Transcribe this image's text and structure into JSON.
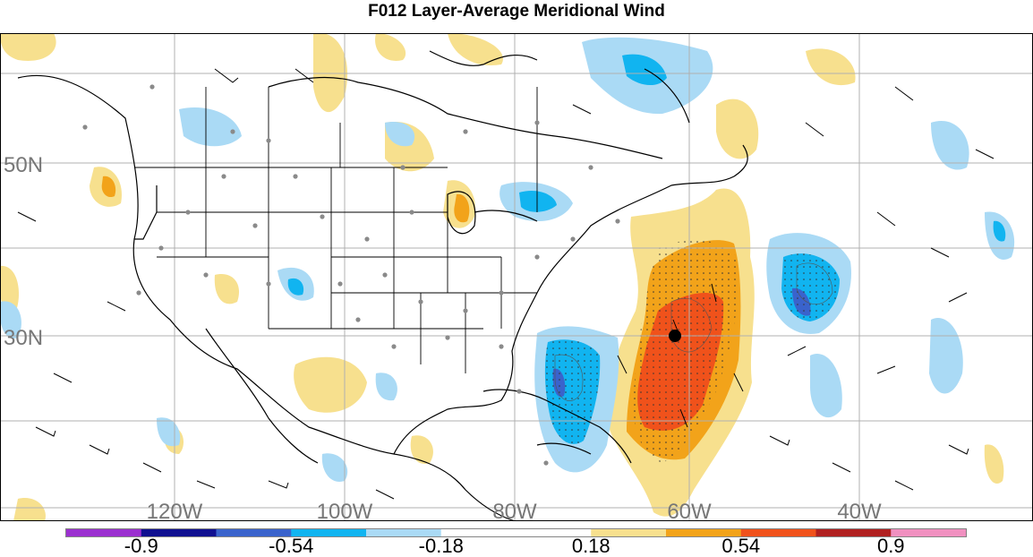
{
  "title": "F012 Layer-Average Meridional Wind",
  "lat_labels": [
    "50N",
    "30N"
  ],
  "lon_labels": [
    "120W",
    "100W",
    "80W",
    "60W",
    "40W"
  ],
  "colorbar": {
    "colors": [
      "#9b30d0",
      "#101090",
      "#3a63cc",
      "#11b4f0",
      "#aadaf5",
      "#ffffff",
      "#ffffff",
      "#f7e08e",
      "#f2a31a",
      "#f0521b",
      "#b02020",
      "#f090c0"
    ],
    "tick_labels": [
      "-0.9",
      "-0.54",
      "-0.18",
      "0.18",
      "0.54",
      "0.9"
    ]
  },
  "colors": {
    "positive_light": "#f7e08e",
    "positive_mid": "#f2a31a",
    "positive_high": "#f0521b",
    "negative_light": "#aadaf5",
    "negative_mid": "#11b4f0",
    "negative_high": "#3a63cc",
    "grid": "#b0b0b0",
    "station": "#8a8a8a",
    "border": "#000000"
  }
}
